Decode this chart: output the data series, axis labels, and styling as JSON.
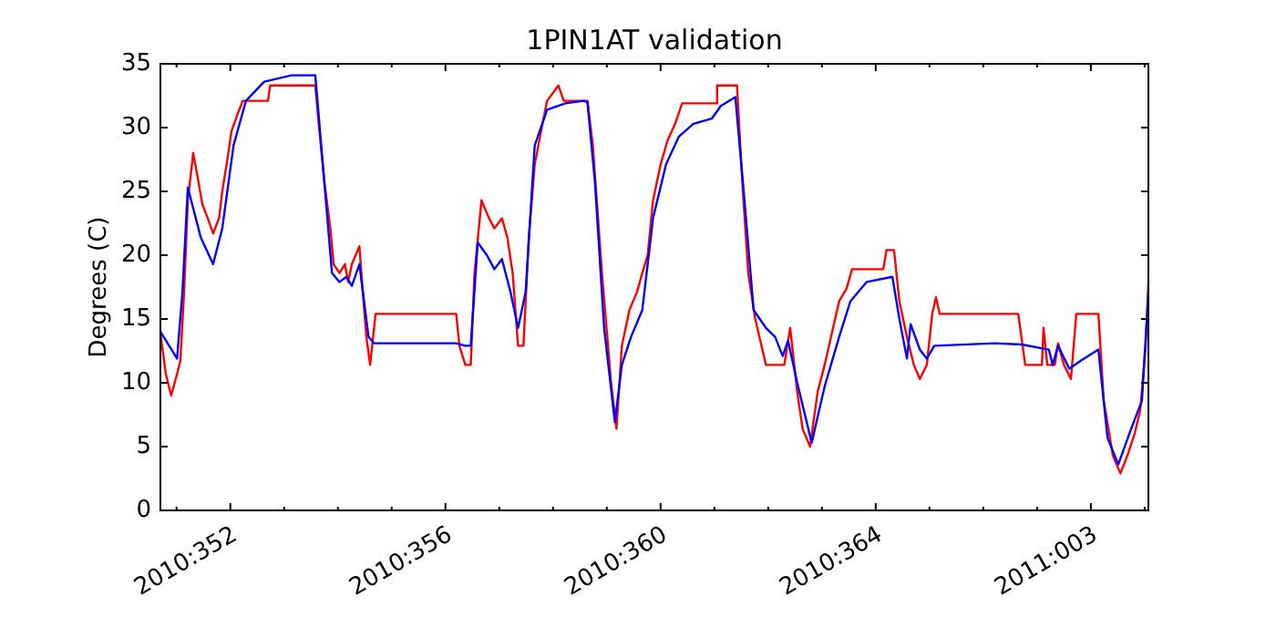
{
  "chart_data": {
    "type": "line",
    "title": "1PIN1AT validation",
    "ylabel": "Degrees (C)",
    "xlim": [
      "2010-12-16T16:48",
      "2011-01-04T01:41"
    ],
    "ylim": [
      0,
      35
    ],
    "yticks": [
      0,
      5,
      10,
      15,
      20,
      25,
      30,
      35
    ],
    "xticks": [
      {
        "value": "2010-12-17",
        "label": null
      },
      {
        "value": "2010-12-18",
        "label": "2010:352"
      },
      {
        "value": "2010-12-19",
        "label": null
      },
      {
        "value": "2010-12-20",
        "label": null
      },
      {
        "value": "2010-12-21",
        "label": null
      },
      {
        "value": "2010-12-22",
        "label": "2010:356"
      },
      {
        "value": "2010-12-23",
        "label": null
      },
      {
        "value": "2010-12-24",
        "label": null
      },
      {
        "value": "2010-12-25",
        "label": null
      },
      {
        "value": "2010-12-26",
        "label": "2010:360"
      },
      {
        "value": "2010-12-27",
        "label": null
      },
      {
        "value": "2010-12-28",
        "label": null
      },
      {
        "value": "2010-12-29",
        "label": null
      },
      {
        "value": "2010-12-30",
        "label": "2010:364"
      },
      {
        "value": "2010-12-31",
        "label": null
      },
      {
        "value": "2011-01-01",
        "label": null
      },
      {
        "value": "2011-01-02",
        "label": null
      },
      {
        "value": "2011-01-03",
        "label": "2011:003"
      },
      {
        "value": "2011-01-04",
        "label": null
      }
    ],
    "grid": false,
    "marker": "none",
    "line_style": "solid",
    "series": [
      {
        "color": "#ff0000",
        "x": [
          "2010-12-16T16:48",
          "2010-12-16T19:12",
          "2010-12-16T21:36",
          "2010-12-17T00:14",
          "2010-12-17T01:41",
          "2010-12-17T03:22",
          "2010-12-17T05:02",
          "2010-12-17T07:26",
          "2010-12-17T09:07",
          "2010-12-17T11:31",
          "2010-12-17T13:55",
          "2010-12-17T16:19",
          "2010-12-17T18:58",
          "2010-12-17T20:24",
          "2010-12-17T23:02",
          "2010-12-18T00:29",
          "2010-12-18T03:07",
          "2010-12-18T05:31",
          "2010-12-18T16:48",
          "2010-12-18T17:46",
          "2010-12-19T13:55",
          "2010-12-19T15:36",
          "2010-12-19T18:00",
          "2010-12-19T20:38",
          "2010-12-19T22:05",
          "2010-12-20T00:43",
          "2010-12-20T03:07",
          "2010-12-20T04:34",
          "2010-12-20T06:14",
          "2010-12-20T07:55",
          "2010-12-20T09:36",
          "2010-12-20T11:17",
          "2010-12-20T12:43",
          "2010-12-20T14:24",
          "2010-12-20T16:48",
          "2010-12-22T04:48",
          "2010-12-22T06:14",
          "2010-12-22T08:53",
          "2010-12-22T11:17",
          "2010-12-22T12:58",
          "2010-12-22T16:05",
          "2010-12-22T19:26",
          "2010-12-22T21:50",
          "2010-12-23T01:12",
          "2010-12-23T03:36",
          "2010-12-23T06:00",
          "2010-12-23T08:24",
          "2010-12-23T10:48",
          "2010-12-23T13:12",
          "2010-12-23T15:50",
          "2010-12-23T18:58",
          "2010-12-23T21:22",
          "2010-12-24T02:24",
          "2010-12-24T04:48",
          "2010-12-24T15:22",
          "2010-12-24T17:46",
          "2010-12-24T21:50",
          "2010-12-25T01:55",
          "2010-12-25T04:19",
          "2010-12-25T06:43",
          "2010-12-25T10:05",
          "2010-12-25T13:26",
          "2010-12-25T15:50",
          "2010-12-25T18:14",
          "2010-12-25T20:38",
          "2010-12-26T00:00",
          "2010-12-26T03:07",
          "2010-12-26T06:29",
          "2010-12-26T09:36",
          "2010-12-27T01:12",
          "2010-12-27T01:12",
          "2010-12-27T10:05",
          "2010-12-27T12:29",
          "2010-12-27T15:07",
          "2010-12-27T18:14",
          "2010-12-27T23:02",
          "2010-12-28T07:12",
          "2010-12-28T09:50",
          "2010-12-28T12:58",
          "2010-12-28T15:22",
          "2010-12-28T18:43",
          "2010-12-28T22:05",
          "2010-12-29T01:12",
          "2010-12-29T04:34",
          "2010-12-29T07:41",
          "2010-12-29T11:02",
          "2010-12-29T13:26",
          "2010-12-30T03:22",
          "2010-12-30T04:48",
          "2010-12-30T08:10",
          "2010-12-30T10:34",
          "2010-12-30T13:55",
          "2010-12-30T17:02",
          "2010-12-30T19:41",
          "2010-12-30T22:48",
          "2010-12-31T01:12",
          "2010-12-31T02:53",
          "2010-12-31T04:34",
          "2011-01-01T15:36",
          "2011-01-01T18:43",
          "2011-01-02T02:10",
          "2011-01-02T02:53",
          "2011-01-02T04:34",
          "2011-01-02T07:55",
          "2011-01-02T09:22",
          "2011-01-02T12:00",
          "2011-01-02T15:07",
          "2011-01-02T17:31",
          "2011-01-03T03:22",
          "2011-01-03T05:46",
          "2011-01-03T09:50",
          "2011-01-03T13:12",
          "2011-01-03T16:19",
          "2011-01-03T19:41",
          "2011-01-03T22:05",
          "2011-01-04T00:29",
          "2011-01-04T01:41"
        ],
        "values": [
          13.9,
          10.7,
          9.0,
          10.7,
          11.7,
          17.1,
          24.3,
          28.0,
          26.4,
          24.0,
          22.9,
          21.7,
          22.9,
          25.0,
          27.9,
          29.7,
          31.0,
          32.1,
          32.1,
          33.3,
          33.3,
          30.0,
          25.7,
          22.1,
          19.3,
          18.6,
          19.3,
          17.9,
          19.3,
          20.0,
          20.7,
          16.7,
          13.6,
          11.4,
          15.4,
          15.4,
          12.9,
          11.4,
          11.4,
          18.6,
          24.3,
          22.9,
          22.1,
          22.9,
          21.4,
          18.6,
          12.9,
          12.9,
          21.4,
          27.1,
          30.0,
          32.1,
          33.3,
          32.1,
          32.1,
          28.6,
          18.6,
          10.0,
          6.4,
          12.9,
          15.7,
          17.1,
          18.6,
          20.0,
          24.3,
          27.1,
          29.0,
          30.3,
          31.9,
          31.9,
          33.3,
          33.3,
          25.7,
          18.6,
          15.0,
          11.4,
          11.4,
          14.3,
          9.3,
          6.4,
          5.0,
          9.3,
          11.4,
          14.0,
          16.4,
          17.4,
          18.9,
          18.9,
          20.4,
          20.4,
          16.4,
          13.6,
          11.4,
          10.3,
          11.4,
          15.4,
          16.7,
          15.4,
          15.4,
          11.4,
          11.4,
          14.3,
          11.4,
          11.4,
          13.1,
          11.4,
          10.3,
          15.4,
          15.4,
          8.6,
          4.3,
          2.9,
          4.3,
          6.1,
          7.9,
          12.9,
          17.9
        ]
      },
      {
        "color": "#0000ff",
        "x": [
          "2010-12-16T16:48",
          "2010-12-17T00:14",
          "2010-12-17T02:38",
          "2010-12-17T05:02",
          "2010-12-17T10:48",
          "2010-12-17T16:19",
          "2010-12-17T20:24",
          "2010-12-18T01:26",
          "2010-12-18T06:58",
          "2010-12-18T15:07",
          "2010-12-19T03:22",
          "2010-12-19T13:55",
          "2010-12-19T16:34",
          "2010-12-19T21:22",
          "2010-12-20T00:43",
          "2010-12-20T03:50",
          "2010-12-20T06:14",
          "2010-12-20T09:36",
          "2010-12-20T13:41",
          "2010-12-20T16:05",
          "2010-12-22T04:48",
          "2010-12-22T08:53",
          "2010-12-22T11:17",
          "2010-12-22T14:24",
          "2010-12-22T18:29",
          "2010-12-22T21:50",
          "2010-12-23T01:12",
          "2010-12-23T05:02",
          "2010-12-23T08:24",
          "2010-12-23T11:46",
          "2010-12-23T15:50",
          "2010-12-23T21:22",
          "2010-12-24T05:31",
          "2010-12-24T13:41",
          "2010-12-24T15:22",
          "2010-12-24T18:43",
          "2010-12-24T22:48",
          "2010-12-25T03:36",
          "2010-12-25T06:43",
          "2010-12-25T10:48",
          "2010-12-25T15:50",
          "2010-12-25T20:38",
          "2010-12-26T02:24",
          "2010-12-26T08:10",
          "2010-12-26T14:38",
          "2010-12-26T22:48",
          "2010-12-27T02:53",
          "2010-12-27T09:22",
          "2010-12-27T13:26",
          "2010-12-27T17:31",
          "2010-12-27T23:02",
          "2010-12-28T03:07",
          "2010-12-28T06:29",
          "2010-12-28T08:53",
          "2010-12-28T12:58",
          "2010-12-28T19:26",
          "2010-12-29T01:12",
          "2010-12-29T07:41",
          "2010-12-29T12:43",
          "2010-12-29T19:55",
          "2010-12-30T07:26",
          "2010-12-30T10:34",
          "2010-12-30T13:55",
          "2010-12-30T15:36",
          "2010-12-30T19:41",
          "2010-12-30T22:48",
          "2010-12-31T02:10",
          "2011-01-01T05:02",
          "2011-01-01T17:17",
          "2011-01-02T05:17",
          "2011-01-02T06:58",
          "2011-01-02T09:22",
          "2011-01-02T14:24",
          "2011-01-02T19:12",
          "2011-01-03T03:22",
          "2011-01-03T07:26",
          "2011-01-03T12:14",
          "2011-01-03T18:00",
          "2011-01-03T22:48",
          "2011-01-04T01:41"
        ],
        "values": [
          14.0,
          11.9,
          17.1,
          25.3,
          21.4,
          19.3,
          22.1,
          28.6,
          32.1,
          33.6,
          34.1,
          34.1,
          28.6,
          18.6,
          17.9,
          18.3,
          17.6,
          19.3,
          13.6,
          13.1,
          13.1,
          12.9,
          12.9,
          21.0,
          20.0,
          18.9,
          19.7,
          17.1,
          14.3,
          17.1,
          28.6,
          31.4,
          31.9,
          32.1,
          32.0,
          25.7,
          14.3,
          6.9,
          11.4,
          13.6,
          15.7,
          22.9,
          27.1,
          29.3,
          30.3,
          30.7,
          31.7,
          32.4,
          24.3,
          15.7,
          14.3,
          13.6,
          12.1,
          13.3,
          10.0,
          5.3,
          9.7,
          13.6,
          16.4,
          17.9,
          18.3,
          15.0,
          11.9,
          14.6,
          12.6,
          11.9,
          12.9,
          13.1,
          13.0,
          12.6,
          11.4,
          12.9,
          11.1,
          11.7,
          12.6,
          5.7,
          3.6,
          6.4,
          8.6,
          17.1
        ]
      }
    ]
  }
}
